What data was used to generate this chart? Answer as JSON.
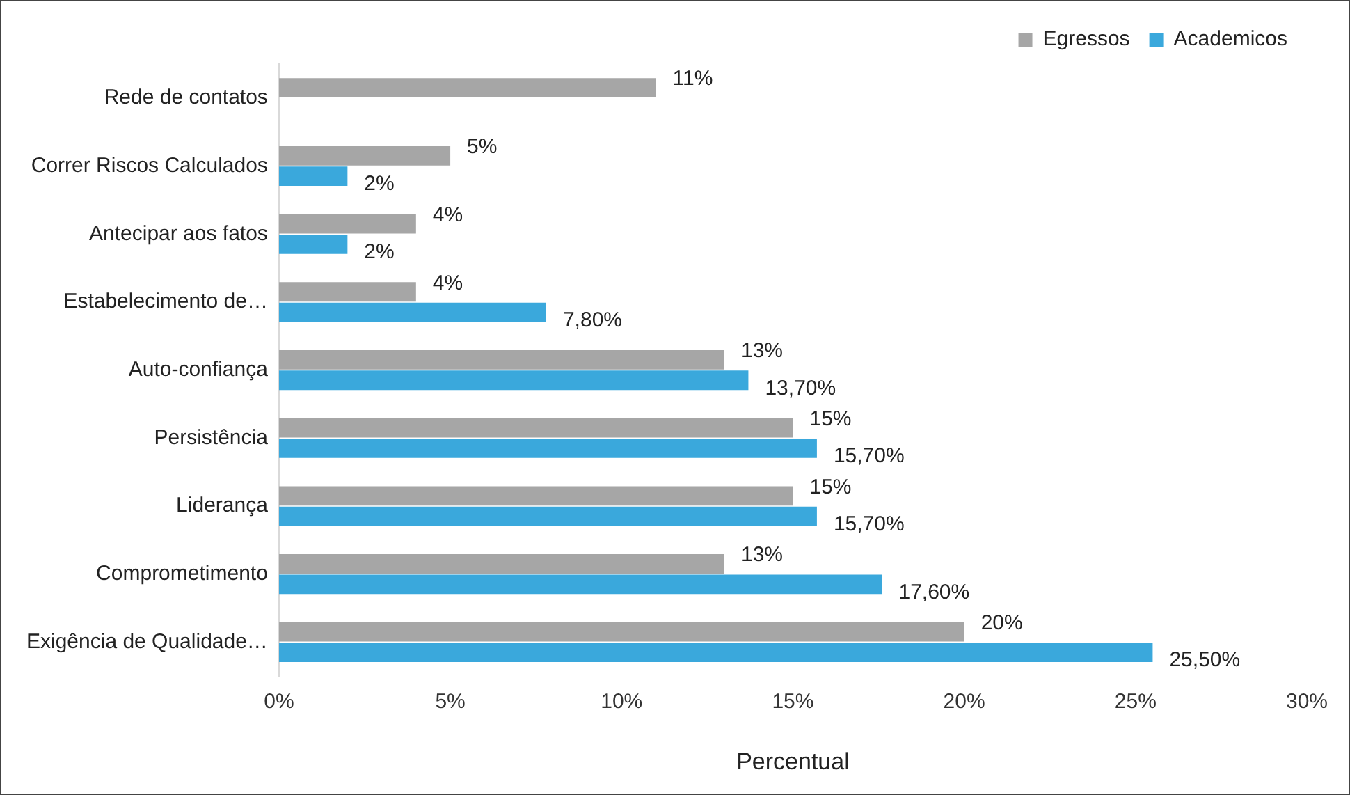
{
  "chart_data": {
    "type": "bar",
    "orientation": "horizontal",
    "categories": [
      "Rede de contatos",
      "Correr Riscos Calculados",
      "Antecipar aos fatos",
      "Estabelecimento de…",
      "Auto-confiança",
      "Persistência",
      "Liderança",
      "Comprometimento",
      "Exigência de Qualidade…"
    ],
    "series": [
      {
        "name": "Egressos",
        "color": "#a6a6a6",
        "values": [
          11,
          5,
          4,
          4,
          13,
          15,
          15,
          13,
          20
        ],
        "value_labels": [
          "11%",
          "5%",
          "4%",
          "4%",
          "13%",
          "15%",
          "15%",
          "13%",
          "20%"
        ]
      },
      {
        "name": "Academicos",
        "color": "#3aa8dc",
        "values": [
          null,
          2,
          2,
          7.8,
          13.7,
          15.7,
          15.7,
          17.6,
          25.5
        ],
        "value_labels": [
          null,
          "2%",
          "2%",
          "7,80%",
          "13,70%",
          "15,70%",
          "15,70%",
          "17,60%",
          "25,50%"
        ]
      }
    ],
    "xlabel": "Percentual",
    "xlim": [
      0,
      30
    ],
    "xticks": [
      {
        "value": 0,
        "label": "0%"
      },
      {
        "value": 5,
        "label": "5%"
      },
      {
        "value": 10,
        "label": "10%"
      },
      {
        "value": 15,
        "label": "15%"
      },
      {
        "value": 20,
        "label": "20%"
      },
      {
        "value": 25,
        "label": "25%"
      },
      {
        "value": 30,
        "label": "30%"
      }
    ],
    "legend": "top right",
    "grid": false
  }
}
